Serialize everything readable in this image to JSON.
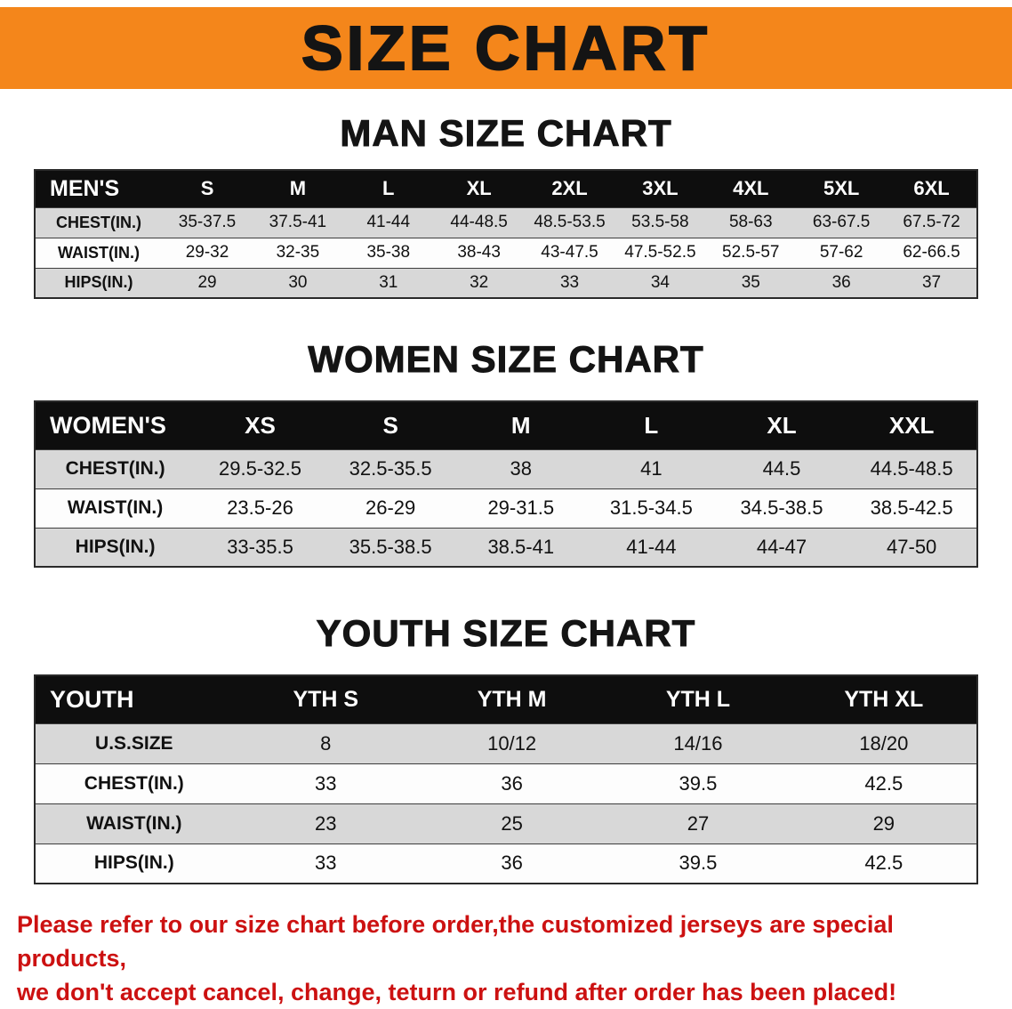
{
  "banner": {
    "title": "SIZE CHART"
  },
  "colors": {
    "banner-bg": "#F4861B",
    "header-bg": "#0E0E0E",
    "stripe": "#D8D8D8",
    "disclaimer": "#CC1111"
  },
  "sections": [
    {
      "id": "men",
      "title": "MAN SIZE CHART",
      "table": {
        "header": [
          "MEN'S",
          "S",
          "M",
          "L",
          "XL",
          "2XL",
          "3XL",
          "4XL",
          "5XL",
          "6XL"
        ],
        "rows": [
          {
            "label": "CHEST(IN.)",
            "values": [
              "35-37.5",
              "37.5-41",
              "41-44",
              "44-48.5",
              "48.5-53.5",
              "53.5-58",
              "58-63",
              "63-67.5",
              "67.5-72"
            ]
          },
          {
            "label": "WAIST(IN.)",
            "values": [
              "29-32",
              "32-35",
              "35-38",
              "38-43",
              "43-47.5",
              "47.5-52.5",
              "52.5-57",
              "57-62",
              "62-66.5"
            ]
          },
          {
            "label": "HIPS(IN.)",
            "values": [
              "29",
              "30",
              "31",
              "32",
              "33",
              "34",
              "35",
              "36",
              "37"
            ]
          }
        ]
      }
    },
    {
      "id": "women",
      "title": "WOMEN SIZE CHART",
      "table": {
        "header": [
          "WOMEN'S",
          "XS",
          "S",
          "M",
          "L",
          "XL",
          "XXL"
        ],
        "rows": [
          {
            "label": "CHEST(IN.)",
            "values": [
              "29.5-32.5",
              "32.5-35.5",
              "38",
              "41",
              "44.5",
              "44.5-48.5"
            ]
          },
          {
            "label": "WAIST(IN.)",
            "values": [
              "23.5-26",
              "26-29",
              "29-31.5",
              "31.5-34.5",
              "34.5-38.5",
              "38.5-42.5"
            ]
          },
          {
            "label": "HIPS(IN.)",
            "values": [
              "33-35.5",
              "35.5-38.5",
              "38.5-41",
              "41-44",
              "44-47",
              "47-50"
            ]
          }
        ]
      }
    },
    {
      "id": "youth",
      "title": "YOUTH SIZE CHART",
      "table": {
        "header": [
          "YOUTH",
          "YTH S",
          "YTH M",
          "YTH L",
          "YTH XL"
        ],
        "rows": [
          {
            "label": "U.S.SIZE",
            "values": [
              "8",
              "10/12",
              "14/16",
              "18/20"
            ]
          },
          {
            "label": "CHEST(IN.)",
            "values": [
              "33",
              "36",
              "39.5",
              "42.5"
            ]
          },
          {
            "label": "WAIST(IN.)",
            "values": [
              "23",
              "25",
              "27",
              "29"
            ]
          },
          {
            "label": "HIPS(IN.)",
            "values": [
              "33",
              "36",
              "39.5",
              "42.5"
            ]
          }
        ]
      }
    }
  ],
  "disclaimer": {
    "line1": "Please refer to our size chart before order,the customized jerseys are special products,",
    "line2": "we don't accept cancel, change, teturn or refund after order has been placed!"
  }
}
